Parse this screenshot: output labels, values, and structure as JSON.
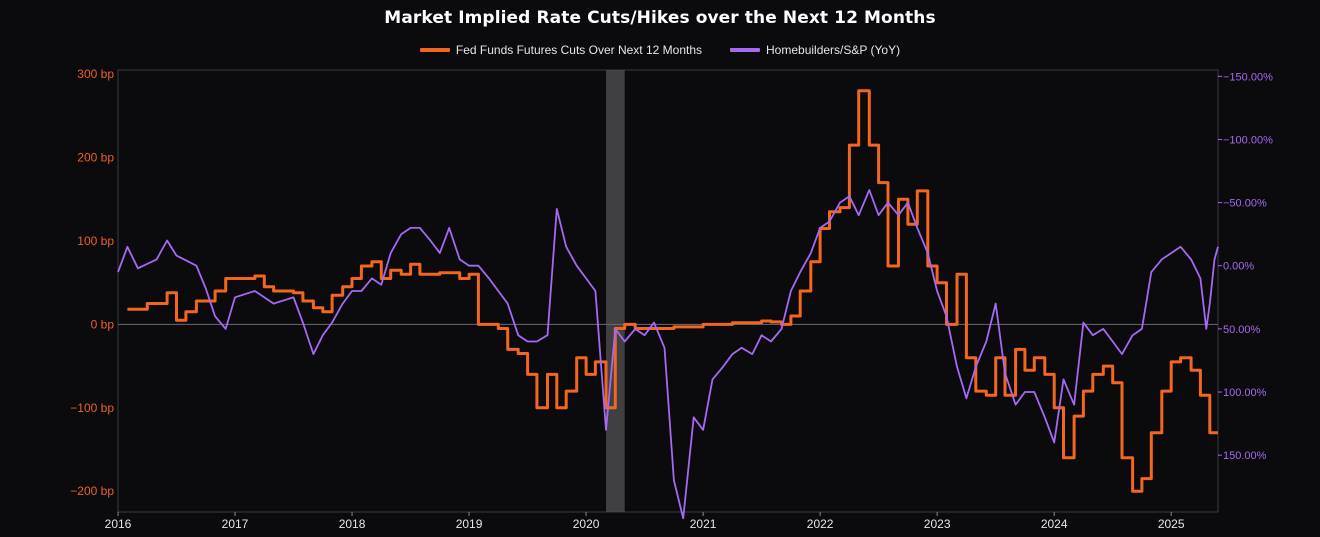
{
  "chart_data": {
    "type": "line",
    "title": "Market Implied Rate Cuts/Hikes over the Next 12 Months",
    "legend_position": "top-center",
    "grid": false,
    "colors": {
      "background": "#0b0a0c",
      "fed_funds": "#f2661f",
      "homebuilders": "#a569f3",
      "zero_line": "#6a6a72",
      "recession_band": "#4a4a4e"
    },
    "x_ticks": [
      "2016",
      "2017",
      "2018",
      "2019",
      "2020",
      "2021",
      "2022",
      "2023",
      "2024",
      "2025"
    ],
    "xlim": [
      2016.0,
      2025.4
    ],
    "y_left": {
      "ticks": [
        "300 bp",
        "200 bp",
        "100 bp",
        "0 bp",
        "−100 bp",
        "−200 bp"
      ],
      "tick_values": [
        300,
        200,
        100,
        0,
        -100,
        -200
      ],
      "ylim": [
        -225,
        305
      ]
    },
    "y_right": {
      "ticks": [
        "−150.00%",
        "−100.00%",
        "−50.00%",
        "0.00%",
        "50.00%",
        "100.00%",
        "150.00%"
      ],
      "tick_values": [
        -150,
        -100,
        -50,
        0,
        50,
        100,
        150
      ],
      "ylim": [
        -155,
        195
      ],
      "inverted": true
    },
    "shaded_periods": [
      [
        2020.17,
        2020.33
      ]
    ],
    "series": [
      {
        "name": "Fed Funds Futures Cuts Over Next 12 Months",
        "axis": "left",
        "step": true,
        "points": [
          [
            2016.08,
            18
          ],
          [
            2016.25,
            25
          ],
          [
            2016.42,
            38
          ],
          [
            2016.5,
            5
          ],
          [
            2016.58,
            15
          ],
          [
            2016.67,
            28
          ],
          [
            2016.83,
            40
          ],
          [
            2016.92,
            55
          ],
          [
            2017.17,
            58
          ],
          [
            2017.25,
            45
          ],
          [
            2017.33,
            40
          ],
          [
            2017.5,
            38
          ],
          [
            2017.58,
            28
          ],
          [
            2017.67,
            20
          ],
          [
            2017.75,
            15
          ],
          [
            2017.83,
            35
          ],
          [
            2017.92,
            45
          ],
          [
            2018.0,
            55
          ],
          [
            2018.08,
            70
          ],
          [
            2018.17,
            75
          ],
          [
            2018.25,
            55
          ],
          [
            2018.33,
            65
          ],
          [
            2018.42,
            60
          ],
          [
            2018.5,
            72
          ],
          [
            2018.58,
            60
          ],
          [
            2018.75,
            62
          ],
          [
            2018.92,
            55
          ],
          [
            2019.0,
            60
          ],
          [
            2019.08,
            0
          ],
          [
            2019.25,
            -5
          ],
          [
            2019.33,
            -30
          ],
          [
            2019.42,
            -35
          ],
          [
            2019.5,
            -60
          ],
          [
            2019.58,
            -100
          ],
          [
            2019.67,
            -60
          ],
          [
            2019.75,
            -100
          ],
          [
            2019.83,
            -80
          ],
          [
            2019.92,
            -40
          ],
          [
            2020.0,
            -60
          ],
          [
            2020.08,
            -45
          ],
          [
            2020.17,
            -100
          ],
          [
            2020.25,
            -5
          ],
          [
            2020.33,
            0
          ],
          [
            2020.42,
            -5
          ],
          [
            2020.75,
            -3
          ],
          [
            2021.0,
            0
          ],
          [
            2021.25,
            2
          ],
          [
            2021.5,
            4
          ],
          [
            2021.58,
            3
          ],
          [
            2021.67,
            0
          ],
          [
            2021.75,
            10
          ],
          [
            2021.83,
            40
          ],
          [
            2021.92,
            75
          ],
          [
            2022.0,
            115
          ],
          [
            2022.08,
            135
          ],
          [
            2022.17,
            140
          ],
          [
            2022.25,
            215
          ],
          [
            2022.33,
            280
          ],
          [
            2022.42,
            215
          ],
          [
            2022.5,
            170
          ],
          [
            2022.58,
            70
          ],
          [
            2022.67,
            150
          ],
          [
            2022.75,
            120
          ],
          [
            2022.83,
            160
          ],
          [
            2022.92,
            70
          ],
          [
            2023.0,
            50
          ],
          [
            2023.08,
            0
          ],
          [
            2023.17,
            60
          ],
          [
            2023.25,
            -40
          ],
          [
            2023.33,
            -80
          ],
          [
            2023.42,
            -85
          ],
          [
            2023.5,
            -40
          ],
          [
            2023.58,
            -85
          ],
          [
            2023.67,
            -30
          ],
          [
            2023.75,
            -55
          ],
          [
            2023.83,
            -40
          ],
          [
            2023.92,
            -60
          ],
          [
            2024.0,
            -100
          ],
          [
            2024.08,
            -160
          ],
          [
            2024.17,
            -110
          ],
          [
            2024.25,
            -80
          ],
          [
            2024.33,
            -60
          ],
          [
            2024.42,
            -50
          ],
          [
            2024.5,
            -70
          ],
          [
            2024.58,
            -160
          ],
          [
            2024.67,
            -200
          ],
          [
            2024.75,
            -185
          ],
          [
            2024.83,
            -130
          ],
          [
            2024.92,
            -80
          ],
          [
            2025.0,
            -45
          ],
          [
            2025.08,
            -40
          ],
          [
            2025.17,
            -55
          ],
          [
            2025.25,
            -85
          ],
          [
            2025.33,
            -130
          ],
          [
            2025.4,
            -130
          ]
        ]
      },
      {
        "name": "Homebuilders/S&P (YoY)",
        "axis": "right",
        "points": [
          [
            2016.0,
            5
          ],
          [
            2016.08,
            -15
          ],
          [
            2016.17,
            2
          ],
          [
            2016.33,
            -5
          ],
          [
            2016.42,
            -20
          ],
          [
            2016.5,
            -8
          ],
          [
            2016.67,
            0
          ],
          [
            2016.75,
            18
          ],
          [
            2016.83,
            40
          ],
          [
            2016.92,
            50
          ],
          [
            2017.0,
            25
          ],
          [
            2017.17,
            20
          ],
          [
            2017.33,
            30
          ],
          [
            2017.5,
            25
          ],
          [
            2017.58,
            45
          ],
          [
            2017.67,
            70
          ],
          [
            2017.75,
            55
          ],
          [
            2017.83,
            45
          ],
          [
            2017.92,
            30
          ],
          [
            2018.0,
            20
          ],
          [
            2018.08,
            20
          ],
          [
            2018.17,
            10
          ],
          [
            2018.25,
            15
          ],
          [
            2018.33,
            -10
          ],
          [
            2018.42,
            -25
          ],
          [
            2018.5,
            -30
          ],
          [
            2018.58,
            -30
          ],
          [
            2018.67,
            -20
          ],
          [
            2018.75,
            -10
          ],
          [
            2018.83,
            -30
          ],
          [
            2018.92,
            -5
          ],
          [
            2019.0,
            0
          ],
          [
            2019.08,
            0
          ],
          [
            2019.17,
            10
          ],
          [
            2019.25,
            20
          ],
          [
            2019.33,
            30
          ],
          [
            2019.42,
            55
          ],
          [
            2019.5,
            60
          ],
          [
            2019.58,
            60
          ],
          [
            2019.67,
            55
          ],
          [
            2019.75,
            -45
          ],
          [
            2019.83,
            -15
          ],
          [
            2019.92,
            0
          ],
          [
            2020.0,
            10
          ],
          [
            2020.08,
            20
          ],
          [
            2020.17,
            130
          ],
          [
            2020.25,
            50
          ],
          [
            2020.33,
            60
          ],
          [
            2020.42,
            50
          ],
          [
            2020.5,
            55
          ],
          [
            2020.58,
            45
          ],
          [
            2020.67,
            65
          ],
          [
            2020.75,
            170
          ],
          [
            2020.83,
            200
          ],
          [
            2020.92,
            120
          ],
          [
            2021.0,
            130
          ],
          [
            2021.08,
            90
          ],
          [
            2021.17,
            80
          ],
          [
            2021.25,
            70
          ],
          [
            2021.33,
            65
          ],
          [
            2021.42,
            70
          ],
          [
            2021.5,
            55
          ],
          [
            2021.58,
            60
          ],
          [
            2021.67,
            50
          ],
          [
            2021.75,
            20
          ],
          [
            2021.83,
            5
          ],
          [
            2021.92,
            -10
          ],
          [
            2022.0,
            -30
          ],
          [
            2022.08,
            -35
          ],
          [
            2022.17,
            -50
          ],
          [
            2022.25,
            -55
          ],
          [
            2022.33,
            -40
          ],
          [
            2022.42,
            -60
          ],
          [
            2022.5,
            -40
          ],
          [
            2022.58,
            -50
          ],
          [
            2022.67,
            -40
          ],
          [
            2022.75,
            -50
          ],
          [
            2022.83,
            -30
          ],
          [
            2022.92,
            -10
          ],
          [
            2023.0,
            20
          ],
          [
            2023.08,
            40
          ],
          [
            2023.17,
            80
          ],
          [
            2023.25,
            105
          ],
          [
            2023.33,
            80
          ],
          [
            2023.42,
            60
          ],
          [
            2023.5,
            30
          ],
          [
            2023.58,
            85
          ],
          [
            2023.67,
            110
          ],
          [
            2023.75,
            100
          ],
          [
            2023.83,
            100
          ],
          [
            2023.92,
            120
          ],
          [
            2024.0,
            140
          ],
          [
            2024.08,
            90
          ],
          [
            2024.17,
            110
          ],
          [
            2024.25,
            45
          ],
          [
            2024.33,
            55
          ],
          [
            2024.42,
            50
          ],
          [
            2024.5,
            60
          ],
          [
            2024.58,
            70
          ],
          [
            2024.67,
            55
          ],
          [
            2024.75,
            50
          ],
          [
            2024.83,
            5
          ],
          [
            2024.92,
            -5
          ],
          [
            2025.0,
            -10
          ],
          [
            2025.08,
            -15
          ],
          [
            2025.17,
            -5
          ],
          [
            2025.25,
            10
          ],
          [
            2025.3,
            50
          ],
          [
            2025.33,
            30
          ],
          [
            2025.37,
            -5
          ],
          [
            2025.4,
            -15
          ]
        ]
      }
    ]
  }
}
